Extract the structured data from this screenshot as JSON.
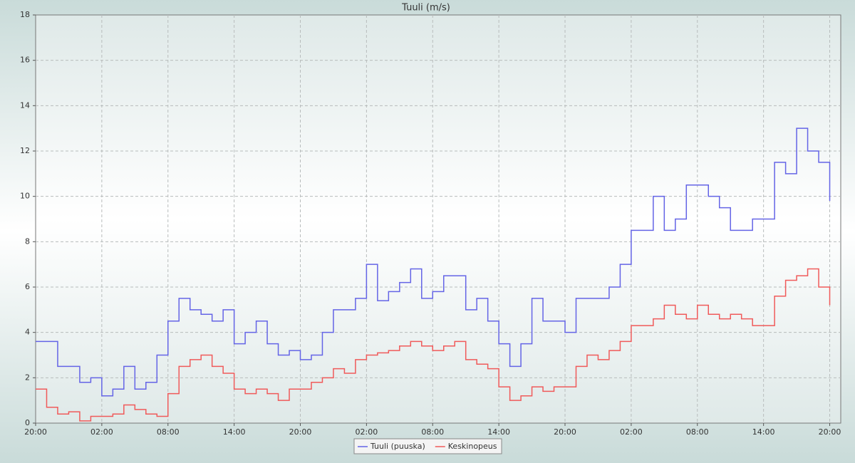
{
  "chart_data": {
    "type": "line",
    "title": "Tuuli (m/s)",
    "step": true,
    "grid": true,
    "legend": "bottom",
    "x": [
      0,
      1,
      2,
      3,
      4,
      5,
      6,
      7,
      8,
      9,
      10,
      11,
      12,
      13,
      14,
      15,
      16,
      17,
      18,
      19,
      20,
      21,
      22,
      23,
      24,
      25,
      26,
      27,
      28,
      29,
      30,
      31,
      32,
      33,
      34,
      35,
      36,
      37,
      38,
      39,
      40,
      41,
      42,
      43,
      44,
      45,
      46,
      47,
      48,
      49,
      50,
      51,
      52,
      53,
      54,
      55,
      56,
      57,
      58,
      59,
      60,
      61,
      62,
      63,
      64,
      65,
      66,
      67,
      68,
      69,
      70,
      71,
      72
    ],
    "series": [
      {
        "name": "Tuuli (puuska)",
        "color": "#6464e6",
        "values": [
          3.6,
          3.6,
          2.5,
          2.5,
          1.8,
          2,
          1.2,
          1.5,
          2.5,
          1.5,
          1.8,
          3,
          4.5,
          5.5,
          5,
          4.8,
          4.5,
          5,
          3.5,
          4,
          4.5,
          3.5,
          3,
          3.2,
          2.8,
          3,
          4,
          5,
          5,
          5.5,
          7,
          5.4,
          5.8,
          6.2,
          6.8,
          5.5,
          5.8,
          6.5,
          6.5,
          5,
          5.5,
          4.5,
          3.5,
          2.5,
          3.5,
          5.5,
          4.5,
          4.5,
          4,
          5.5,
          5.5,
          5.5,
          6,
          7,
          8.5,
          8.5,
          10,
          8.5,
          9,
          10.5,
          10.5,
          10,
          9.5,
          8.5,
          8.5,
          9,
          9,
          11.5,
          11,
          13,
          12,
          11.5,
          9.8
        ]
      },
      {
        "name": "Keskinopeus",
        "color": "#f05a5a",
        "values": [
          1.5,
          0.7,
          0.4,
          0.5,
          0.1,
          0.3,
          0.3,
          0.4,
          0.8,
          0.6,
          0.4,
          0.3,
          1.3,
          2.5,
          2.8,
          3,
          2.5,
          2.2,
          1.5,
          1.3,
          1.5,
          1.3,
          1,
          1.5,
          1.5,
          1.8,
          2,
          2.4,
          2.2,
          2.8,
          3,
          3.1,
          3.2,
          3.4,
          3.6,
          3.4,
          3.2,
          3.4,
          3.6,
          2.8,
          2.6,
          2.4,
          1.6,
          1,
          1.2,
          1.6,
          1.4,
          1.6,
          1.6,
          2.5,
          3,
          2.8,
          3.2,
          3.6,
          4.3,
          4.3,
          4.6,
          5.2,
          4.8,
          4.6,
          5.2,
          4.8,
          4.6,
          4.8,
          4.6,
          4.3,
          4.3,
          5.6,
          6.3,
          6.5,
          6.8,
          6,
          5.2
        ]
      }
    ],
    "xlim": [
      0,
      73
    ],
    "xticks": [
      {
        "value": 0,
        "label": "20:00"
      },
      {
        "value": 6,
        "label": "02:00"
      },
      {
        "value": 12,
        "label": "08:00"
      },
      {
        "value": 18,
        "label": "14:00"
      },
      {
        "value": 24,
        "label": "20:00"
      },
      {
        "value": 30,
        "label": "02:00"
      },
      {
        "value": 36,
        "label": "08:00"
      },
      {
        "value": 42,
        "label": "14:00"
      },
      {
        "value": 48,
        "label": "20:00"
      },
      {
        "value": 54,
        "label": "02:00"
      },
      {
        "value": 60,
        "label": "08:00"
      },
      {
        "value": 66,
        "label": "14:00"
      },
      {
        "value": 72,
        "label": "20:00"
      }
    ],
    "ylim": [
      0,
      18
    ],
    "yticks": [
      0,
      2,
      4,
      6,
      8,
      10,
      12,
      14,
      16,
      18
    ]
  }
}
